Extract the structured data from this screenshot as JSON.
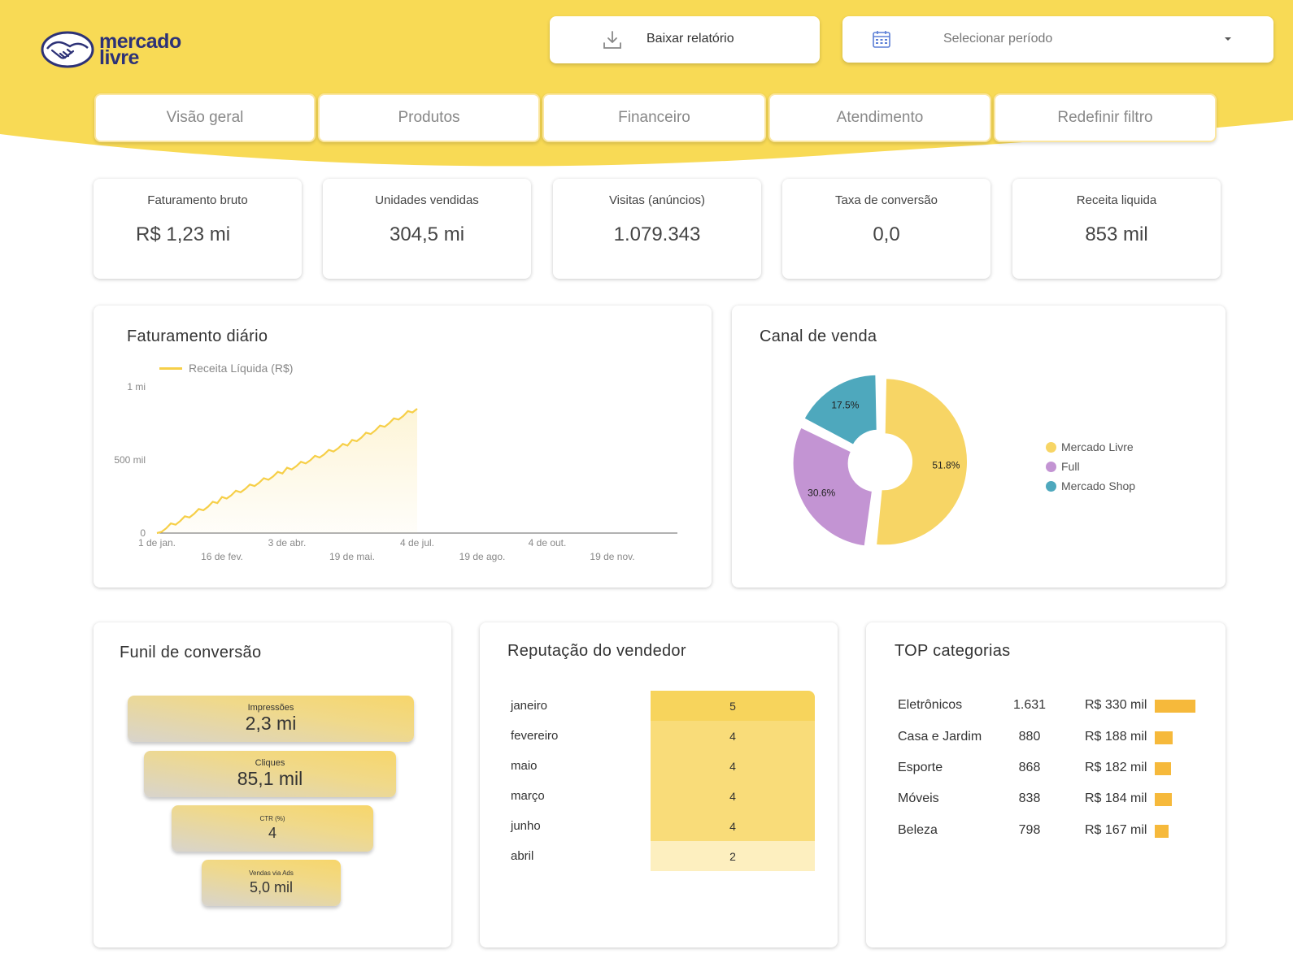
{
  "brand": {
    "line1": "mercado",
    "line2": "livre",
    "logo_icon": "handshake-icon"
  },
  "header": {
    "download_label": "Baixar relatório",
    "download_icon": "download-icon",
    "period_placeholder": "Selecionar período",
    "period_icon": "calendar-icon"
  },
  "tabs": [
    {
      "label": "Visão geral"
    },
    {
      "label": "Produtos"
    },
    {
      "label": "Financeiro"
    },
    {
      "label": "Atendimento"
    },
    {
      "label": "Redefinir filtro"
    }
  ],
  "kpis": [
    {
      "label": "Faturamento bruto",
      "value": "R$ 1,23 mi"
    },
    {
      "label": "Unidades vendidas",
      "value": "304,5 mi"
    },
    {
      "label": "Visitas (anúncios)",
      "value": "1.079.343"
    },
    {
      "label": "Taxa de conversão",
      "value": "0,0"
    },
    {
      "label": "Receita liquida",
      "value": "853 mil"
    }
  ],
  "daily": {
    "title": "Faturamento diário",
    "chart_data": {
      "type": "area",
      "series": [
        {
          "name": "Receita Líquida (R$)",
          "x": [
            "1 de jan.",
            "16 de fev.",
            "3 de abr.",
            "19 de mai.",
            "4 de jul."
          ],
          "values": [
            0,
            230000,
            430000,
            620000,
            850000
          ]
        }
      ],
      "x_tick_labels": [
        "1 de jan.",
        "16 de fev.",
        "3 de abr.",
        "19 de mai.",
        "4 de jul.",
        "19 de ago.",
        "4 de out.",
        "19 de nov."
      ],
      "y_tick_labels": [
        "0",
        "500 mil",
        "1 mi"
      ],
      "ylim": [
        0,
        1000000
      ],
      "legend": "top-left",
      "color": "#f6cf48"
    }
  },
  "channel": {
    "title": "Canal de venda",
    "chart_data": {
      "type": "pie",
      "categories": [
        "Mercado Livre",
        "Full",
        "Mercado Shop"
      ],
      "values": [
        51.8,
        30.6,
        17.5
      ],
      "labels": [
        "51.8%",
        "30.6%",
        "17.5%"
      ],
      "colors": [
        "#f7d565",
        "#c394d3",
        "#4ea8bd"
      ],
      "legend": "right"
    }
  },
  "funnel": {
    "title": "Funil de conversão",
    "steps": [
      {
        "label": "Impressões",
        "value": "2,3 mi"
      },
      {
        "label": "Cliques",
        "value": "85,1 mil"
      },
      {
        "label": "CTR (%)",
        "value": "4"
      },
      {
        "label": "Vendas via Ads",
        "value": "5,0 mil"
      }
    ]
  },
  "reputation": {
    "title": "Reputação do vendedor",
    "rows": [
      {
        "month": "janeiro",
        "score": "5"
      },
      {
        "month": "fevereiro",
        "score": "4"
      },
      {
        "month": "maio",
        "score": "4"
      },
      {
        "month": "março",
        "score": "4"
      },
      {
        "month": "junho",
        "score": "4"
      },
      {
        "month": "abril",
        "score": "2"
      }
    ],
    "scores_numeric": [
      5,
      4,
      4,
      4,
      4,
      2
    ]
  },
  "categories": {
    "title": "TOP categorias",
    "rows": [
      {
        "name": "Eletrônicos",
        "qty": "1.631",
        "revenue": "R$ 330 mil",
        "revenue_value": 330
      },
      {
        "name": "Casa e Jardim",
        "qty": "880",
        "revenue": "R$ 188 mil",
        "revenue_value": 188
      },
      {
        "name": "Esporte",
        "qty": "868",
        "revenue": "R$ 182 mil",
        "revenue_value": 182
      },
      {
        "name": "Móveis",
        "qty": "838",
        "revenue": "R$ 184 mil",
        "revenue_value": 184
      },
      {
        "name": "Beleza",
        "qty": "798",
        "revenue": "R$ 167 mil",
        "revenue_value": 167
      }
    ],
    "bar_color": "#f6b93b"
  }
}
